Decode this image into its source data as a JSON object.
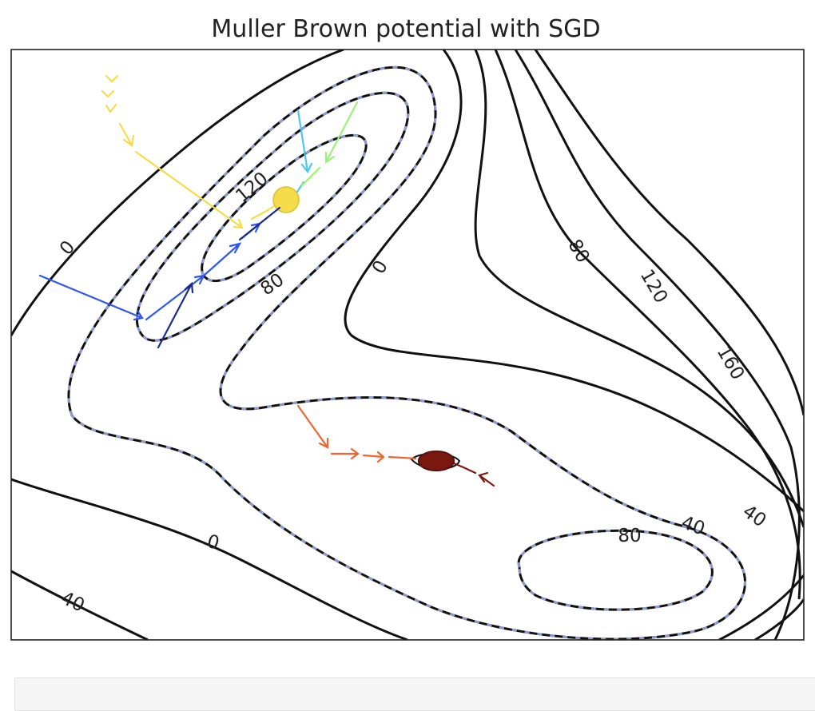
{
  "chart_data": {
    "type": "contour",
    "title": "Muller Brown potential with SGD",
    "xlabel": "",
    "ylabel": "",
    "grid": false,
    "legend": "none",
    "contour_labels": [
      {
        "text": "120"
      },
      {
        "text": "0"
      },
      {
        "text": "80"
      },
      {
        "text": "0"
      },
      {
        "text": "80"
      },
      {
        "text": "120"
      },
      {
        "text": "160"
      },
      {
        "text": "40"
      },
      {
        "text": "80"
      },
      {
        "text": "40"
      },
      {
        "text": "0"
      },
      {
        "text": "40"
      }
    ],
    "trajectories": [
      {
        "color": "#f7dc4a",
        "start": "upper-left",
        "end": "upper-minimum"
      },
      {
        "color": "#2f57f0",
        "start": "left",
        "end": "upper-minimum"
      },
      {
        "color": "#1b2a8f",
        "start": "left",
        "end": "upper-minimum"
      },
      {
        "color": "#4cc7ef",
        "start": "top",
        "end": "upper-minimum"
      },
      {
        "color": "#9df07a",
        "start": "top-right",
        "end": "upper-minimum"
      },
      {
        "color": "#ec6533",
        "start": "middle",
        "end": "middle-minimum"
      },
      {
        "color": "#7a1910",
        "start": "middle-right",
        "end": "middle-minimum"
      }
    ],
    "contour_colors": {
      "line": "#000000",
      "dash": "#8a9bd0"
    }
  }
}
